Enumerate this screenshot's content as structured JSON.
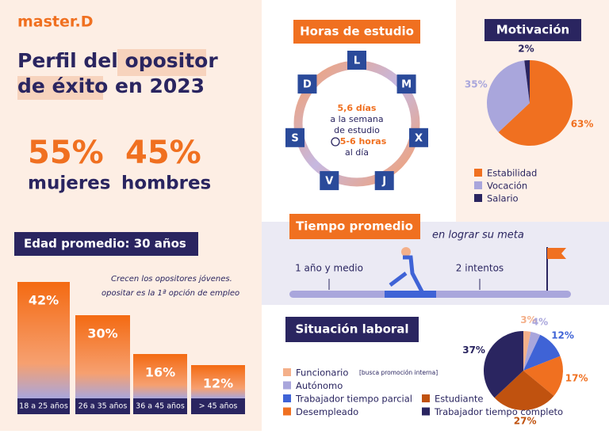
{
  "header": {
    "brand": "master.D",
    "title_lines": [
      "Perfil del opositor",
      "de éxito en 2023"
    ]
  },
  "gender": [
    {
      "percent": "55%",
      "label": "mujeres"
    },
    {
      "percent": "45%",
      "label": "hombres"
    }
  ],
  "study_hours": {
    "title": "Horas de estudio",
    "days": [
      "L",
      "M",
      "X",
      "J",
      "V",
      "S",
      "D"
    ],
    "lines": [
      "5,6 días",
      "a la semana",
      "de estudio",
      "5-6 horas",
      "al día"
    ]
  },
  "timeline": {
    "title": "Tiempo promedio",
    "subtitle": "en lograr su meta",
    "milestones": [
      "1 año y medio",
      "2 intentos"
    ]
  },
  "chart_data": [
    {
      "type": "bar",
      "title": "Edad promedio: 30 años",
      "annotation": [
        "Crecen los opositores jóvenes.",
        "opositar es la 1ª opción de empleo"
      ],
      "categories": [
        "18 a 25 años",
        "26 a 35 años",
        "36 a 45 años",
        "> 45 años"
      ],
      "values": [
        42,
        30,
        16,
        12
      ],
      "value_labels": [
        "42%",
        "30%",
        "16%",
        "12%"
      ],
      "color": "#f07020"
    },
    {
      "type": "pie",
      "title": "Motivación",
      "categories": [
        "Estabilidad",
        "Vocación",
        "Salario"
      ],
      "values": [
        63,
        35,
        2
      ],
      "value_labels": [
        "63%",
        "35%",
        "2%"
      ],
      "colors": [
        "#f07020",
        "#a9a6dc",
        "#2a2560"
      ]
    },
    {
      "type": "pie",
      "title": "Situación laboral",
      "categories": [
        "Funcionario",
        "Autónomo",
        "Trabajador tiempo parcial",
        "Desempleado",
        "Estudiante",
        "Trabajador tiempo completo"
      ],
      "category_note": "[busca promoción interna]",
      "values": [
        3,
        4,
        12,
        17,
        27,
        37
      ],
      "value_labels": [
        "3%",
        "4%",
        "12%",
        "17%",
        "27%",
        "37%"
      ],
      "colors": [
        "#f4b08a",
        "#a9a6dc",
        "#3f63d6",
        "#f07020",
        "#c0520f",
        "#2a2560"
      ]
    }
  ]
}
